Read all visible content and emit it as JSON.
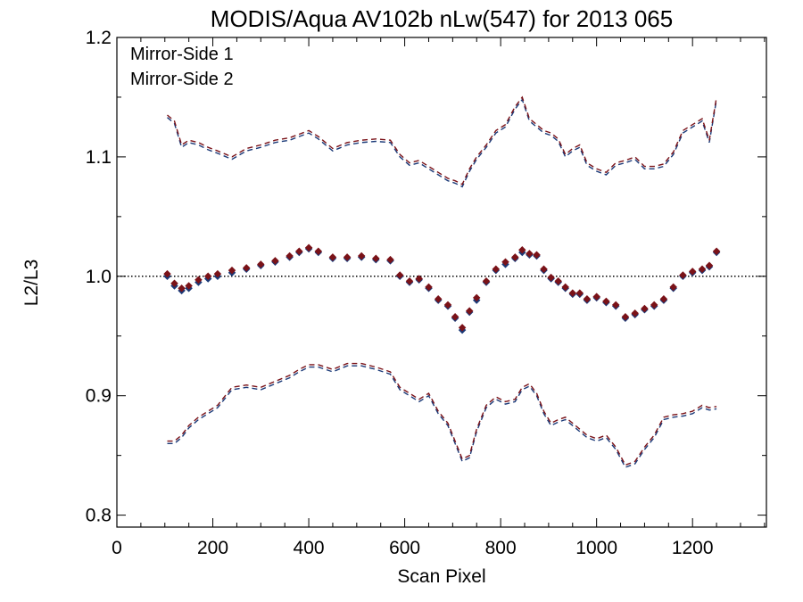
{
  "chart_data": {
    "type": "scatter",
    "title": "MODIS/Aqua AV102b nLw(547) for 2013 065",
    "xlabel": "Scan Pixel",
    "ylabel": "L2/L3",
    "xlim": [
      0,
      1354
    ],
    "ylim": [
      0.79,
      1.2
    ],
    "x_ticks": [
      0,
      200,
      400,
      600,
      800,
      1000,
      1200
    ],
    "x_tick_labels": [
      "0",
      "200",
      "400",
      "600",
      "800",
      "1000",
      "1200"
    ],
    "y_ticks": [
      0.8,
      0.9,
      1.0,
      1.1,
      1.2
    ],
    "y_tick_labels": [
      "0.8",
      "0.9",
      "1.0",
      "1.1",
      "1.2"
    ],
    "reference_line": 1.0,
    "legend_position": "top-left",
    "series": [
      {
        "name": "Mirror-Side 1",
        "color": "#1b3a78",
        "mean_x": [
          105,
          120,
          135,
          150,
          170,
          190,
          210,
          240,
          270,
          300,
          330,
          360,
          380,
          400,
          420,
          450,
          480,
          510,
          540,
          570,
          590,
          610,
          630,
          650,
          670,
          690,
          705,
          720,
          735,
          750,
          770,
          790,
          810,
          830,
          845,
          860,
          875,
          890,
          905,
          920,
          935,
          950,
          965,
          980,
          1000,
          1020,
          1040,
          1060,
          1080,
          1100,
          1120,
          1140,
          1160,
          1180,
          1200,
          1220,
          1235,
          1250
        ],
        "mean_y": [
          1.0,
          0.992,
          0.988,
          0.99,
          0.995,
          0.998,
          1.0,
          1.003,
          1.006,
          1.009,
          1.012,
          1.016,
          1.02,
          1.023,
          1.02,
          1.015,
          1.015,
          1.016,
          1.014,
          1.013,
          1.0,
          0.995,
          0.997,
          0.99,
          0.98,
          0.975,
          0.965,
          0.955,
          0.97,
          0.98,
          0.995,
          1.005,
          1.01,
          1.015,
          1.02,
          1.018,
          1.017,
          1.005,
          0.998,
          0.995,
          0.99,
          0.985,
          0.985,
          0.98,
          0.982,
          0.978,
          0.975,
          0.965,
          0.968,
          0.972,
          0.975,
          0.98,
          0.99,
          1.0,
          1.003,
          1.005,
          1.008,
          1.02
        ],
        "upper_y": [
          1.133,
          1.128,
          1.108,
          1.112,
          1.11,
          1.106,
          1.103,
          1.098,
          1.105,
          1.108,
          1.112,
          1.114,
          1.117,
          1.12,
          1.115,
          1.105,
          1.11,
          1.112,
          1.113,
          1.112,
          1.1,
          1.093,
          1.095,
          1.09,
          1.085,
          1.08,
          1.078,
          1.075,
          1.088,
          1.098,
          1.108,
          1.12,
          1.125,
          1.14,
          1.148,
          1.13,
          1.125,
          1.12,
          1.118,
          1.113,
          1.1,
          1.105,
          1.108,
          1.093,
          1.088,
          1.085,
          1.093,
          1.095,
          1.098,
          1.09,
          1.09,
          1.092,
          1.102,
          1.12,
          1.125,
          1.13,
          1.112,
          1.148
        ],
        "lower_y": [
          0.86,
          0.86,
          0.865,
          0.873,
          0.88,
          0.885,
          0.89,
          0.905,
          0.907,
          0.905,
          0.91,
          0.915,
          0.92,
          0.924,
          0.924,
          0.92,
          0.925,
          0.925,
          0.922,
          0.918,
          0.905,
          0.9,
          0.895,
          0.9,
          0.885,
          0.875,
          0.86,
          0.845,
          0.848,
          0.87,
          0.89,
          0.897,
          0.893,
          0.895,
          0.905,
          0.908,
          0.9,
          0.885,
          0.875,
          0.878,
          0.88,
          0.875,
          0.87,
          0.865,
          0.862,
          0.865,
          0.855,
          0.84,
          0.843,
          0.855,
          0.865,
          0.88,
          0.882,
          0.883,
          0.885,
          0.89,
          0.888,
          0.889
        ]
      },
      {
        "name": "Mirror-Side 2",
        "color": "#7a1218",
        "mean_x": [
          105,
          120,
          135,
          150,
          170,
          190,
          210,
          240,
          270,
          300,
          330,
          360,
          380,
          400,
          420,
          450,
          480,
          510,
          540,
          570,
          590,
          610,
          630,
          650,
          670,
          690,
          705,
          720,
          735,
          750,
          770,
          790,
          810,
          830,
          845,
          860,
          875,
          890,
          905,
          920,
          935,
          950,
          965,
          980,
          1000,
          1020,
          1040,
          1060,
          1080,
          1100,
          1120,
          1140,
          1160,
          1180,
          1200,
          1220,
          1235,
          1250
        ],
        "mean_y": [
          1.002,
          0.994,
          0.99,
          0.992,
          0.997,
          1.0,
          1.002,
          1.005,
          1.007,
          1.01,
          1.013,
          1.017,
          1.021,
          1.024,
          1.021,
          1.016,
          1.016,
          1.017,
          1.015,
          1.014,
          1.001,
          0.996,
          0.998,
          0.991,
          0.981,
          0.976,
          0.966,
          0.957,
          0.971,
          0.982,
          0.996,
          1.006,
          1.012,
          1.016,
          1.022,
          1.019,
          1.018,
          1.006,
          0.999,
          0.996,
          0.991,
          0.986,
          0.986,
          0.981,
          0.983,
          0.979,
          0.976,
          0.966,
          0.969,
          0.973,
          0.976,
          0.981,
          0.991,
          1.001,
          1.004,
          1.006,
          1.009,
          1.021
        ],
        "upper_y": [
          1.135,
          1.13,
          1.11,
          1.114,
          1.112,
          1.108,
          1.105,
          1.1,
          1.107,
          1.11,
          1.114,
          1.116,
          1.119,
          1.122,
          1.117,
          1.107,
          1.112,
          1.114,
          1.115,
          1.114,
          1.102,
          1.095,
          1.097,
          1.092,
          1.087,
          1.082,
          1.08,
          1.077,
          1.09,
          1.1,
          1.11,
          1.122,
          1.127,
          1.142,
          1.15,
          1.132,
          1.127,
          1.122,
          1.12,
          1.115,
          1.102,
          1.107,
          1.11,
          1.095,
          1.09,
          1.087,
          1.095,
          1.097,
          1.1,
          1.092,
          1.092,
          1.094,
          1.104,
          1.122,
          1.127,
          1.132,
          1.114,
          1.15
        ],
        "lower_y": [
          0.862,
          0.862,
          0.867,
          0.875,
          0.882,
          0.887,
          0.892,
          0.907,
          0.909,
          0.907,
          0.912,
          0.917,
          0.922,
          0.926,
          0.926,
          0.922,
          0.927,
          0.927,
          0.924,
          0.92,
          0.907,
          0.902,
          0.897,
          0.902,
          0.887,
          0.877,
          0.862,
          0.847,
          0.85,
          0.872,
          0.892,
          0.899,
          0.895,
          0.897,
          0.907,
          0.91,
          0.902,
          0.887,
          0.877,
          0.88,
          0.882,
          0.877,
          0.872,
          0.867,
          0.864,
          0.867,
          0.857,
          0.842,
          0.845,
          0.857,
          0.867,
          0.882,
          0.884,
          0.885,
          0.887,
          0.892,
          0.89,
          0.891
        ]
      }
    ]
  }
}
